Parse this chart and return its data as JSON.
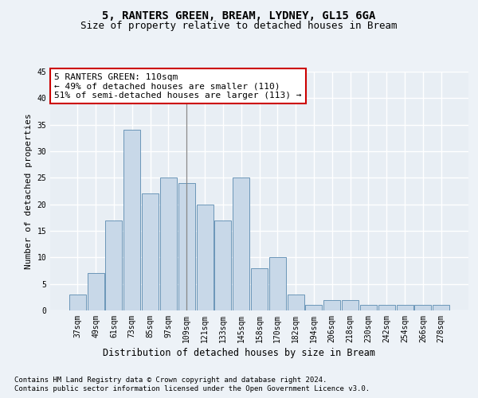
{
  "title1": "5, RANTERS GREEN, BREAM, LYDNEY, GL15 6GA",
  "title2": "Size of property relative to detached houses in Bream",
  "xlabel": "Distribution of detached houses by size in Bream",
  "ylabel": "Number of detached properties",
  "categories": [
    "37sqm",
    "49sqm",
    "61sqm",
    "73sqm",
    "85sqm",
    "97sqm",
    "109sqm",
    "121sqm",
    "133sqm",
    "145sqm",
    "158sqm",
    "170sqm",
    "182sqm",
    "194sqm",
    "206sqm",
    "218sqm",
    "230sqm",
    "242sqm",
    "254sqm",
    "266sqm",
    "278sqm"
  ],
  "values": [
    3,
    7,
    17,
    34,
    22,
    25,
    24,
    20,
    17,
    25,
    8,
    10,
    3,
    1,
    2,
    2,
    1,
    1,
    1,
    1,
    1
  ],
  "bar_color": "#c8d8e8",
  "bar_edge_color": "#5a8ab0",
  "vline_x": 6,
  "vline_color": "#888888",
  "annotation_line1": "5 RANTERS GREEN: 110sqm",
  "annotation_line2": "← 49% of detached houses are smaller (110)",
  "annotation_line3": "51% of semi-detached houses are larger (113) →",
  "annotation_box_color": "#ffffff",
  "annotation_box_edge": "#cc0000",
  "footer1": "Contains HM Land Registry data © Crown copyright and database right 2024.",
  "footer2": "Contains public sector information licensed under the Open Government Licence v3.0.",
  "ylim": [
    0,
    45
  ],
  "yticks": [
    0,
    5,
    10,
    15,
    20,
    25,
    30,
    35,
    40,
    45
  ],
  "bg_color": "#edf2f7",
  "plot_bg_color": "#e8eef4",
  "grid_color": "#ffffff",
  "title1_fontsize": 10,
  "title2_fontsize": 9,
  "xlabel_fontsize": 8.5,
  "ylabel_fontsize": 8,
  "tick_fontsize": 7,
  "annotation_fontsize": 8,
  "footer_fontsize": 6.5
}
